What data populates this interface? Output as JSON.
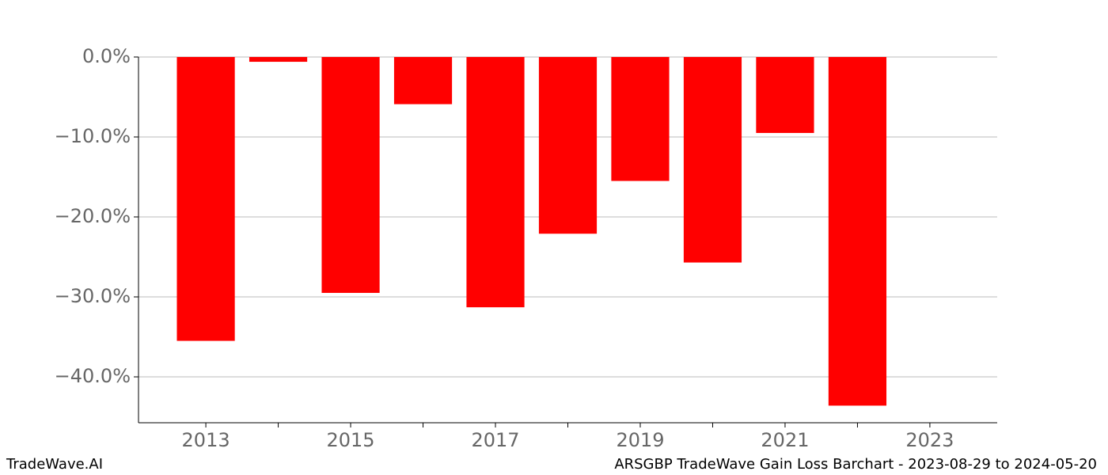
{
  "chart_data": {
    "type": "bar",
    "title": "ARSGBP TradeWave Gain Loss Barchart - 2023-08-29 to 2024-05-20",
    "brand": "TradeWave.AI",
    "x": [
      2013,
      2014,
      2015,
      2016,
      2017,
      2018,
      2019,
      2020,
      2021,
      2022
    ],
    "values": [
      -35.5,
      -0.6,
      -29.5,
      -5.9,
      -31.3,
      -22.1,
      -15.5,
      -25.7,
      -9.5,
      -43.6
    ],
    "color": "#ff0000",
    "bar_width": 0.8,
    "xlim": [
      2012.07,
      2023.93
    ],
    "xticks": [
      2013,
      2015,
      2017,
      2019,
      2021,
      2023
    ],
    "xminor_ticks": [
      2014,
      2016,
      2018,
      2020,
      2022
    ],
    "ylim": [
      -45.74,
      0
    ],
    "yticks": [
      {
        "value": 0,
        "label": "0.0%"
      },
      {
        "value": -10,
        "label": "−10.0%"
      },
      {
        "value": -20,
        "label": "−20.0%"
      },
      {
        "value": -30,
        "label": "−30.0%"
      },
      {
        "value": -40,
        "label": "−40.0%"
      }
    ],
    "grid": true
  }
}
